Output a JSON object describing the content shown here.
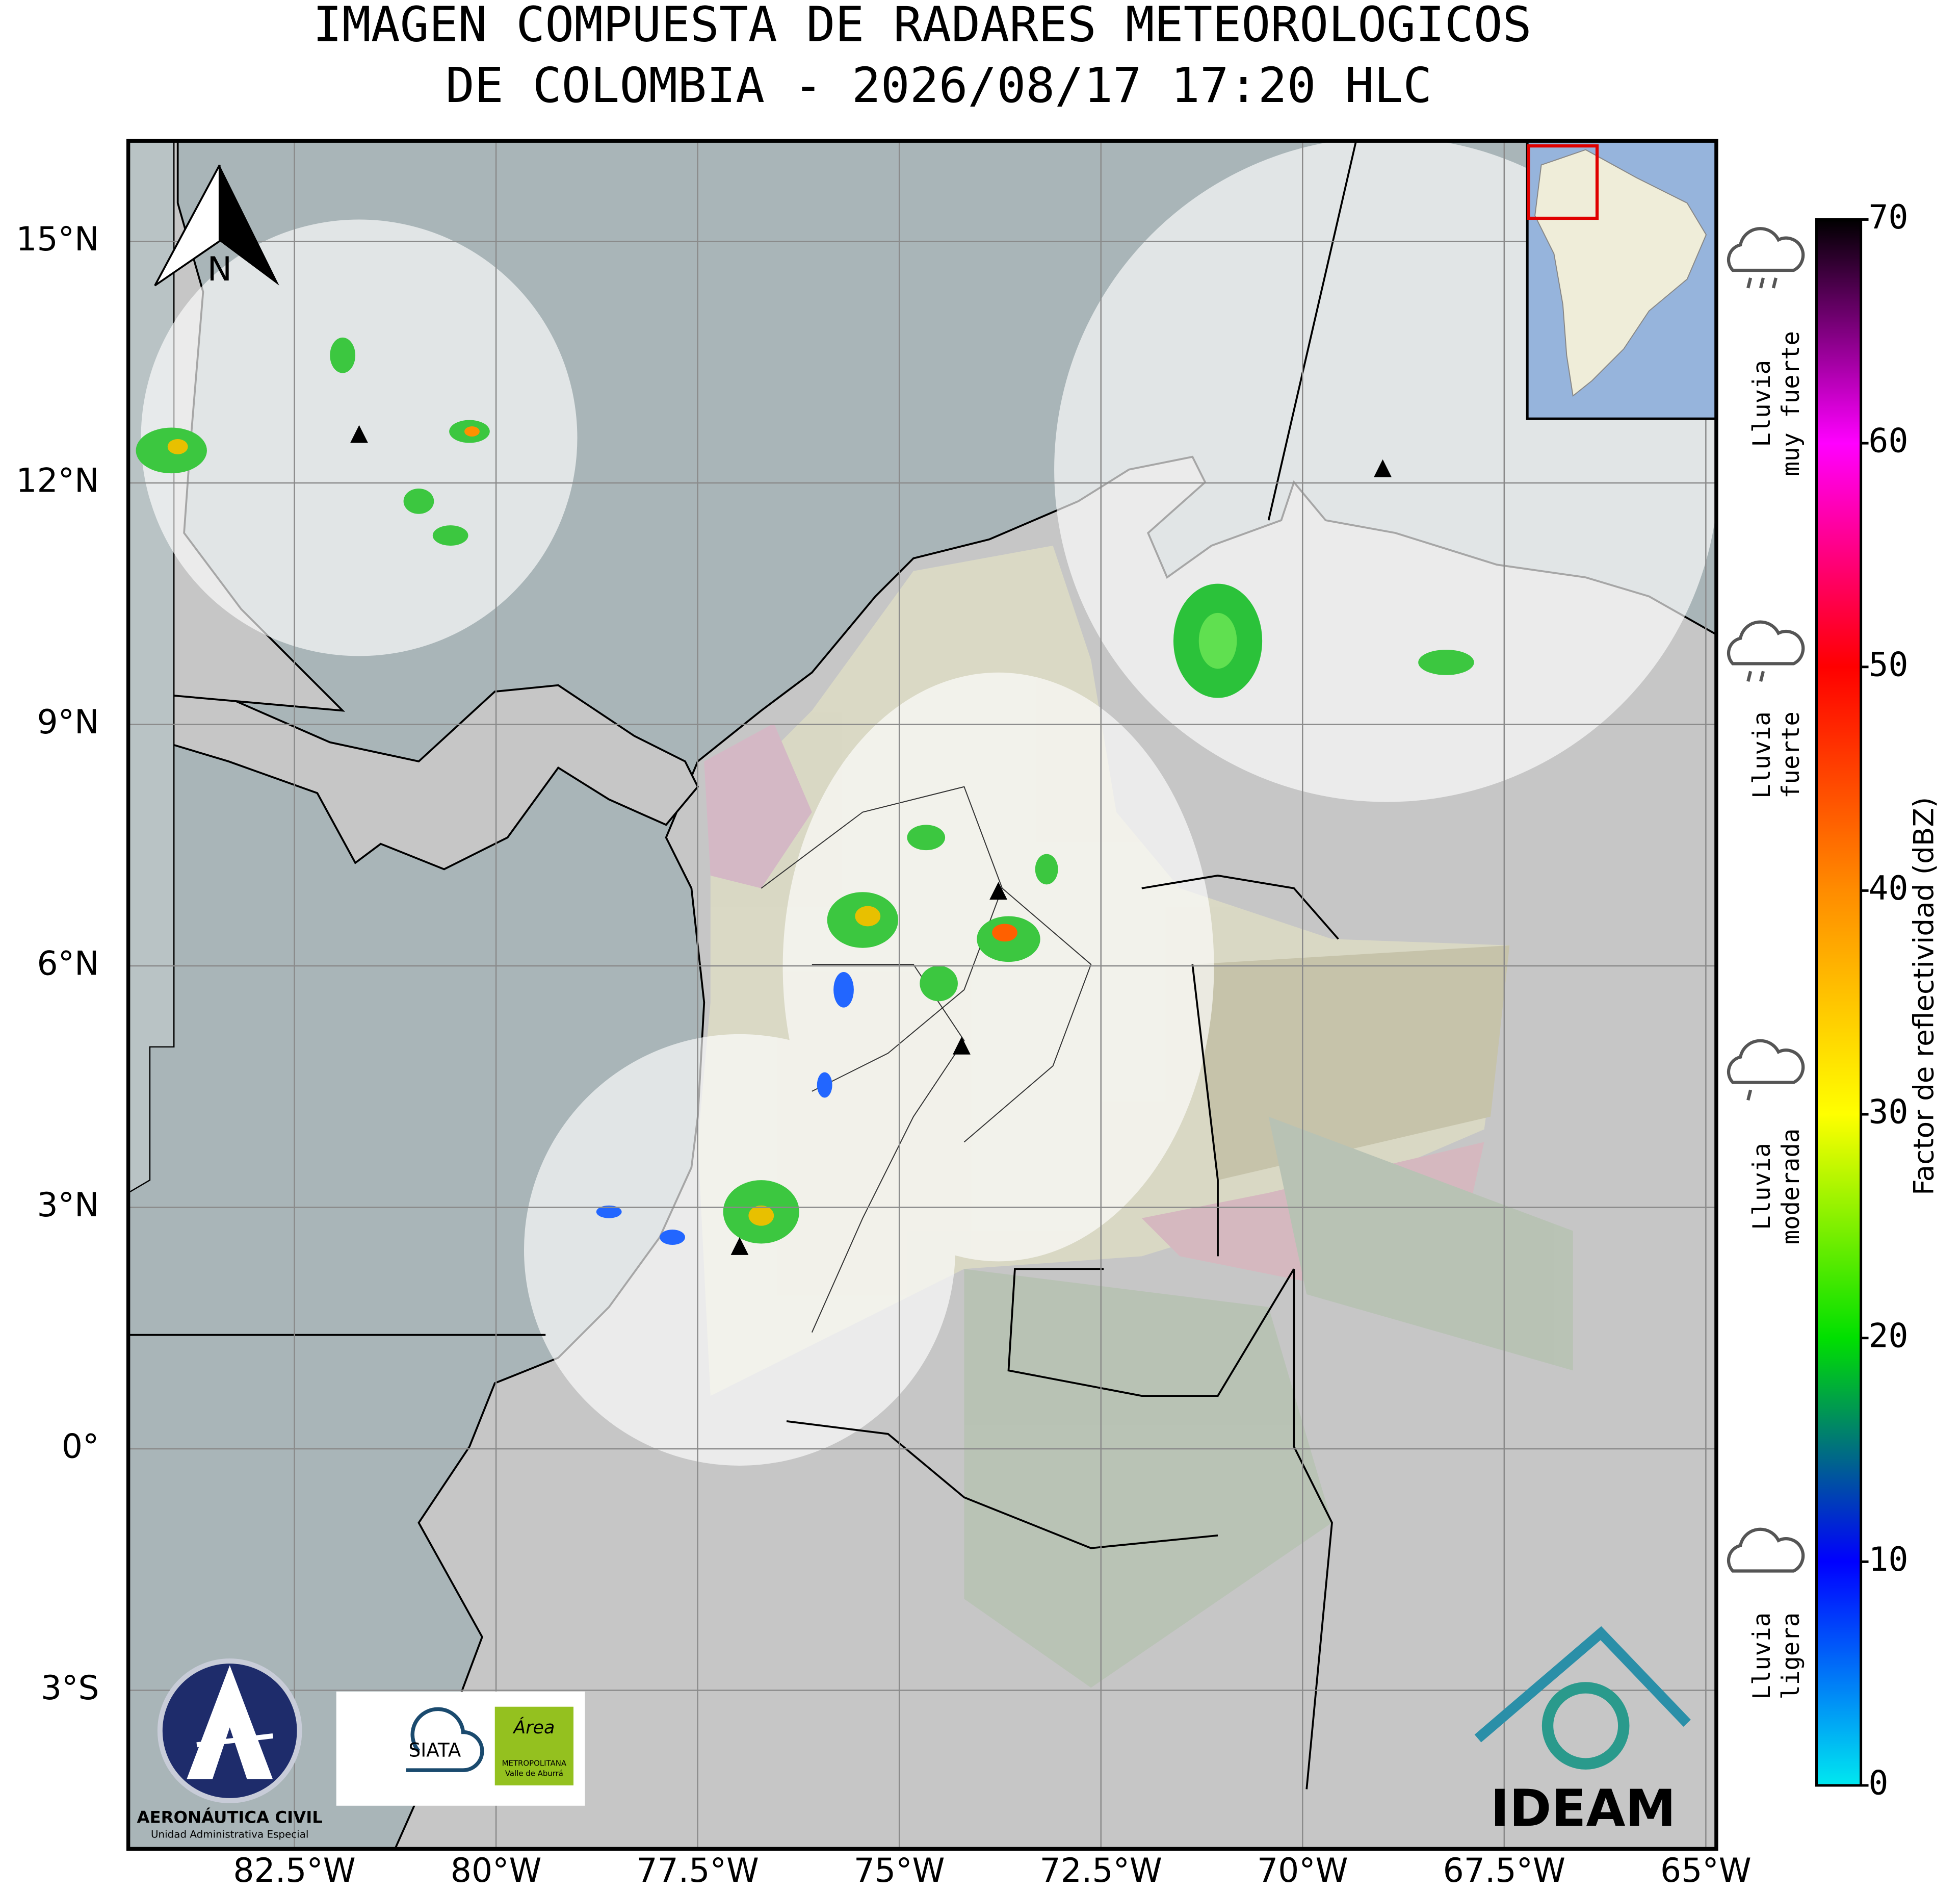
{
  "title": [
    "IMAGEN COMPUESTA DE RADARES METEOROLOGICOS",
    "DE COLOMBIA - 2026/08/17 17:20 HLC"
  ],
  "map": {
    "xlim": [
      -84.56,
      -64.87
    ],
    "ylim": [
      -4.97,
      16.25
    ],
    "xticks": [
      {
        "value": -82.5,
        "label": "82.5°W"
      },
      {
        "value": -80,
        "label": "80°W"
      },
      {
        "value": -77.5,
        "label": "77.5°W"
      },
      {
        "value": -75,
        "label": "75°W"
      },
      {
        "value": -72.5,
        "label": "72.5°W"
      },
      {
        "value": -70,
        "label": "70°W"
      },
      {
        "value": -67.5,
        "label": "67.5°W"
      },
      {
        "value": -65,
        "label": "65°W"
      }
    ],
    "yticks": [
      {
        "value": -3,
        "label": "3°S"
      },
      {
        "value": 0,
        "label": "0°"
      },
      {
        "value": 3,
        "label": "3°N"
      },
      {
        "value": 6,
        "label": "6°N"
      },
      {
        "value": 9,
        "label": "9°N"
      },
      {
        "value": 12,
        "label": "12°N"
      },
      {
        "value": 15,
        "label": "15°N"
      }
    ],
    "grid": true
  },
  "compass": "N",
  "colorbar": {
    "label": "Factor de reflectividad (dBZ)",
    "lim": [
      0,
      70
    ],
    "ticks": [
      0,
      10,
      20,
      30,
      40,
      50,
      60,
      70
    ],
    "colors": [
      "#00e8f0",
      "#0000ff",
      "#00e000",
      "#ffff00",
      "#ff8c00",
      "#ff0000",
      "#ff00ff",
      "#000000"
    ]
  },
  "legend": [
    {
      "lines": [
        "Lluvia",
        "muy fuerte"
      ]
    },
    {
      "lines": [
        "Lluvia",
        "fuerte"
      ]
    },
    {
      "lines": [
        "Lluvia",
        "moderada"
      ]
    },
    {
      "lines": [
        "Lluvia",
        "ligera"
      ]
    }
  ],
  "logos": {
    "aerocivil": [
      "AERONÁUTICA CIVIL",
      "Unidad Administrativa Especial"
    ],
    "siata": "SIATA",
    "area": [
      "Área",
      "METROPOLITANA",
      "Valle de Aburrá"
    ],
    "ideam": "IDEAM"
  }
}
